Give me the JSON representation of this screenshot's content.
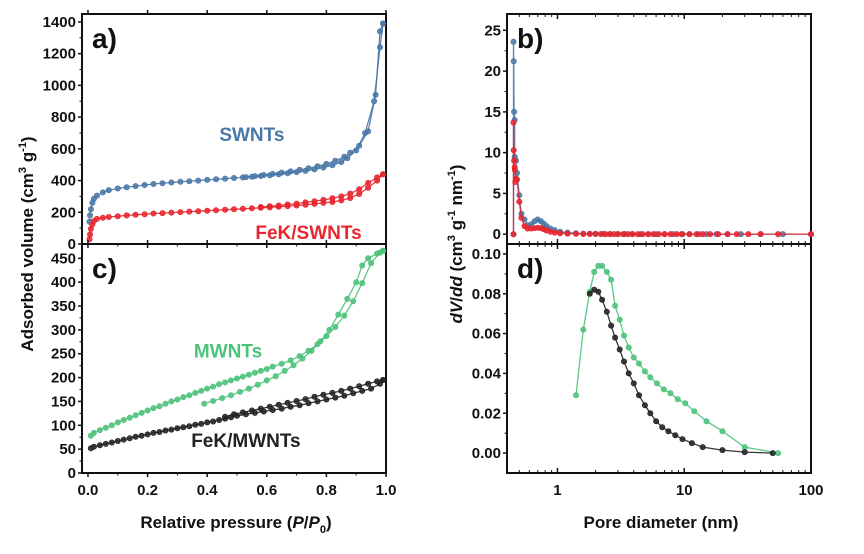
{
  "chart_data": [
    {
      "panel": "a",
      "type": "line",
      "tag": "a)",
      "xlabel": "Relative pressure (P/P0)",
      "ylabel": "Adsorbed volume (cm3 g-1)",
      "xlim": [
        -0.02,
        1.0
      ],
      "ylim": [
        0,
        1450
      ],
      "yticks": [
        0,
        200,
        400,
        600,
        800,
        1000,
        1200,
        1400
      ],
      "xticks": [
        0.0,
        0.2,
        0.4,
        0.6,
        0.8,
        1.0
      ],
      "show_xtick_labels": false,
      "series": [
        {
          "name": "SWNTs",
          "color": "#4a78a8",
          "label_pos": [
            0.55,
            650
          ],
          "x": [
            0.005,
            0.007,
            0.01,
            0.015,
            0.02,
            0.03,
            0.05,
            0.07,
            0.1,
            0.13,
            0.16,
            0.19,
            0.22,
            0.25,
            0.28,
            0.31,
            0.34,
            0.37,
            0.4,
            0.43,
            0.46,
            0.49,
            0.52,
            0.55,
            0.58,
            0.61,
            0.64,
            0.67,
            0.7,
            0.73,
            0.76,
            0.79,
            0.82,
            0.85,
            0.87,
            0.9,
            0.93,
            0.96,
            0.98,
            0.99,
            0.99,
            0.98,
            0.965,
            0.94,
            0.91,
            0.88,
            0.86,
            0.83,
            0.8,
            0.77,
            0.74,
            0.71,
            0.68,
            0.65,
            0.62,
            0.59,
            0.56,
            0.53
          ],
          "y": [
            140,
            180,
            220,
            260,
            285,
            305,
            325,
            340,
            350,
            358,
            365,
            372,
            378,
            383,
            388,
            392,
            396,
            400,
            404,
            408,
            412,
            416,
            420,
            424,
            429,
            434,
            440,
            446,
            453,
            461,
            470,
            482,
            496,
            517,
            540,
            590,
            700,
            900,
            1240,
            1390,
            1390,
            1340,
            940,
            710,
            620,
            575,
            550,
            525,
            505,
            490,
            478,
            467,
            458,
            450,
            442,
            435,
            428,
            422
          ],
          "hysteresis_split": 40
        },
        {
          "name": "FeK/SWNTs",
          "color": "#e8262f",
          "label_pos": [
            0.74,
            30
          ],
          "x": [
            0.005,
            0.007,
            0.01,
            0.015,
            0.02,
            0.03,
            0.05,
            0.07,
            0.1,
            0.13,
            0.16,
            0.19,
            0.22,
            0.25,
            0.28,
            0.31,
            0.34,
            0.37,
            0.4,
            0.43,
            0.46,
            0.49,
            0.52,
            0.55,
            0.58,
            0.61,
            0.64,
            0.67,
            0.7,
            0.73,
            0.76,
            0.79,
            0.82,
            0.85,
            0.88,
            0.91,
            0.94,
            0.97,
            0.99,
            0.99,
            0.97,
            0.94,
            0.91,
            0.88,
            0.85,
            0.82,
            0.79,
            0.76,
            0.73,
            0.7,
            0.67,
            0.64,
            0.61,
            0.58
          ],
          "y": [
            30,
            60,
            95,
            125,
            145,
            158,
            165,
            170,
            175,
            180,
            184,
            188,
            192,
            195,
            198,
            201,
            204,
            207,
            210,
            213,
            216,
            219,
            222,
            225,
            228,
            231,
            235,
            239,
            243,
            248,
            253,
            259,
            265,
            275,
            290,
            315,
            355,
            400,
            440,
            440,
            420,
            385,
            345,
            318,
            300,
            288,
            278,
            270,
            262,
            255,
            249,
            243,
            238,
            233
          ],
          "hysteresis_split": 39
        }
      ]
    },
    {
      "panel": "b",
      "type": "line",
      "tag": "b)",
      "xscale": "log",
      "xlim": [
        0.4,
        100
      ],
      "ylim": [
        -1.2,
        27
      ],
      "yticks": [
        0,
        5,
        10,
        15,
        20,
        25
      ],
      "show_xtick_labels": false,
      "series": [
        {
          "name": "SWNTs",
          "color": "#4a78a8",
          "x": [
            0.45,
            0.45,
            0.452,
            0.455,
            0.46,
            0.46,
            0.465,
            0.47,
            0.48,
            0.5,
            0.52,
            0.55,
            0.58,
            0.62,
            0.66,
            0.7,
            0.74,
            0.78,
            0.82,
            0.88,
            0.95,
            1.05,
            1.2,
            1.4,
            1.6,
            1.8,
            2.0,
            2.3,
            2.6,
            3.0,
            3.4,
            3.9,
            4.5,
            5.2,
            6.0,
            7.0,
            8.2,
            9.5,
            11,
            13,
            15,
            18,
            22,
            28,
            40,
            60,
            100
          ],
          "y": [
            0,
            23.6,
            21.2,
            15,
            14,
            9.5,
            9.2,
            9.0,
            7.5,
            4.8,
            2.5,
            1.8,
            1.1,
            1.2,
            1.6,
            1.8,
            1.6,
            1.3,
            1.0,
            0.7,
            0.5,
            0.3,
            0.2,
            0.12,
            0.08,
            0.06,
            0.05,
            0.04,
            0.03,
            0.02,
            0.02,
            0.02,
            0.01,
            0.01,
            0.01,
            0.01,
            0.01,
            0.01,
            0.01,
            0.01,
            0.01,
            0.01,
            0.01,
            0.01,
            0.01,
            0.01,
            0.01
          ]
        },
        {
          "name": "FeK/SWNTs",
          "color": "#e8262f",
          "x": [
            0.45,
            0.45,
            0.452,
            0.455,
            0.46,
            0.462,
            0.465,
            0.47,
            0.48,
            0.5,
            0.52,
            0.55,
            0.58,
            0.62,
            0.66,
            0.7,
            0.74,
            0.78,
            0.82,
            0.88,
            0.95,
            1.05,
            1.2,
            1.4,
            1.6,
            1.8,
            2.0,
            2.2,
            2.4,
            2.6,
            2.8,
            3.0,
            3.3,
            3.6,
            3.9,
            4.3,
            4.7,
            5.2,
            5.7,
            6.3,
            7.0,
            7.8,
            8.7,
            9.7,
            11,
            12.5,
            14,
            16,
            18.5,
            22,
            26,
            32,
            40,
            55,
            100
          ],
          "y": [
            0,
            13.7,
            10.3,
            9.0,
            8.2,
            7.9,
            6.4,
            6.8,
            6.7,
            4.0,
            2.0,
            1.0,
            0.7,
            0.7,
            0.75,
            0.8,
            0.75,
            0.6,
            0.45,
            0.3,
            0.2,
            0.12,
            0.08,
            0.05,
            0.03,
            0.02,
            0.02,
            0.02,
            0.01,
            0.01,
            0.01,
            0.01,
            0.01,
            0.01,
            0.01,
            0.01,
            0.01,
            0.01,
            0.01,
            0.01,
            0.01,
            0.01,
            0.01,
            0.01,
            0.01,
            0.01,
            0.01,
            0.01,
            0.01,
            0.01,
            0.01,
            0.01,
            0.01,
            0.01,
            0.01
          ]
        }
      ]
    },
    {
      "panel": "c",
      "type": "line",
      "tag": "c)",
      "xlabel": "Relative pressure (P/P0)",
      "xlim": [
        -0.02,
        1.0
      ],
      "ylim": [
        0,
        480
      ],
      "yticks": [
        0,
        50,
        100,
        150,
        200,
        250,
        300,
        350,
        400,
        450
      ],
      "xticks": [
        0.0,
        0.2,
        0.4,
        0.6,
        0.8,
        1.0
      ],
      "xtick_labels": [
        "0.0",
        "0.2",
        "0.4",
        "0.6",
        "0.8",
        "1.0"
      ],
      "series": [
        {
          "name": "MWNTs",
          "color": "#4cc27a",
          "label_pos": [
            0.47,
            242
          ],
          "x": [
            0.01,
            0.02,
            0.04,
            0.06,
            0.08,
            0.1,
            0.12,
            0.14,
            0.16,
            0.18,
            0.2,
            0.22,
            0.24,
            0.26,
            0.28,
            0.3,
            0.32,
            0.34,
            0.36,
            0.38,
            0.4,
            0.42,
            0.44,
            0.46,
            0.48,
            0.5,
            0.52,
            0.54,
            0.56,
            0.58,
            0.6,
            0.62,
            0.65,
            0.68,
            0.71,
            0.74,
            0.77,
            0.8,
            0.83,
            0.86,
            0.89,
            0.92,
            0.95,
            0.98,
            0.99,
            0.99,
            0.97,
            0.94,
            0.92,
            0.9,
            0.87,
            0.84,
            0.81,
            0.78,
            0.75,
            0.72,
            0.69,
            0.66,
            0.63,
            0.6,
            0.57,
            0.54,
            0.51,
            0.48,
            0.45,
            0.42,
            0.39
          ],
          "y": [
            78,
            84,
            90,
            95,
            100,
            106,
            111,
            116,
            121,
            126,
            131,
            136,
            140,
            145,
            150,
            154,
            159,
            163,
            168,
            172,
            177,
            181,
            186,
            190,
            194,
            198,
            202,
            206,
            210,
            214,
            218,
            223,
            229,
            236,
            245,
            256,
            270,
            287,
            306,
            330,
            360,
            398,
            440,
            462,
            466,
            466,
            460,
            450,
            435,
            400,
            365,
            332,
            300,
            276,
            256,
            240,
            226,
            214,
            203,
            194,
            185,
            177,
            170,
            163,
            157,
            151,
            145
          ],
          "hysteresis_split": 45
        },
        {
          "name": "FeK/MWNTs",
          "color": "#222222",
          "label_pos": [
            0.53,
            55
          ],
          "x": [
            0.01,
            0.02,
            0.04,
            0.06,
            0.08,
            0.1,
            0.12,
            0.14,
            0.16,
            0.18,
            0.2,
            0.22,
            0.24,
            0.26,
            0.28,
            0.3,
            0.32,
            0.34,
            0.36,
            0.38,
            0.4,
            0.42,
            0.44,
            0.46,
            0.48,
            0.5,
            0.53,
            0.56,
            0.59,
            0.62,
            0.65,
            0.68,
            0.71,
            0.74,
            0.77,
            0.8,
            0.83,
            0.86,
            0.89,
            0.92,
            0.95,
            0.98,
            0.99,
            0.99,
            0.97,
            0.94,
            0.91,
            0.88,
            0.85,
            0.82,
            0.79,
            0.76,
            0.73,
            0.7,
            0.67,
            0.64,
            0.61,
            0.58,
            0.55,
            0.52,
            0.49,
            0.46
          ],
          "y": [
            52,
            55,
            58,
            61,
            64,
            67,
            70,
            73,
            76,
            78,
            81,
            84,
            86,
            89,
            91,
            94,
            96,
            98,
            101,
            103,
            106,
            108,
            111,
            114,
            117,
            120,
            123,
            126,
            129,
            132,
            135,
            139,
            142,
            146,
            150,
            154,
            158,
            162,
            167,
            172,
            177,
            187,
            195,
            195,
            192,
            187,
            182,
            177,
            172,
            168,
            164,
            160,
            155,
            151,
            147,
            143,
            139,
            135,
            131,
            127,
            123,
            118
          ],
          "hysteresis_split": 43
        }
      ]
    },
    {
      "panel": "d",
      "type": "line",
      "tag": "d)",
      "xscale": "log",
      "xlabel": "Pore diameter (nm)",
      "ylabel": "dV/dd (cm3 g-1 nm-1)",
      "xlim": [
        0.4,
        100
      ],
      "ylim": [
        -0.01,
        0.105
      ],
      "yticks": [
        0.0,
        0.02,
        0.04,
        0.06,
        0.08,
        0.1
      ],
      "ytick_labels": [
        "0.00",
        "0.02",
        "0.04",
        "0.06",
        "0.08",
        "0.10"
      ],
      "xticks": [
        1,
        10,
        100
      ],
      "xtick_labels": [
        "1",
        "10",
        "100"
      ],
      "series": [
        {
          "name": "MWNTs",
          "color": "#4cc27a",
          "x": [
            1.4,
            1.6,
            1.8,
            1.95,
            2.1,
            2.25,
            2.45,
            2.65,
            2.85,
            3.1,
            3.35,
            3.65,
            4.0,
            4.4,
            4.9,
            5.4,
            6.1,
            6.9,
            7.8,
            8.9,
            10.2,
            12,
            15,
            20,
            30,
            55
          ],
          "y": [
            0.029,
            0.062,
            0.081,
            0.091,
            0.094,
            0.094,
            0.091,
            0.087,
            0.074,
            0.067,
            0.059,
            0.053,
            0.048,
            0.045,
            0.041,
            0.038,
            0.035,
            0.032,
            0.03,
            0.027,
            0.025,
            0.021,
            0.016,
            0.011,
            0.003,
            0.0
          ]
        },
        {
          "name": "FeK/MWNTs",
          "color": "#222222",
          "x": [
            1.8,
            1.95,
            2.1,
            2.25,
            2.45,
            2.65,
            2.85,
            3.1,
            3.35,
            3.65,
            4.0,
            4.4,
            4.9,
            5.4,
            6.0,
            6.7,
            7.5,
            8.5,
            9.7,
            11.5,
            14,
            20,
            30,
            50
          ],
          "y": [
            0.08,
            0.082,
            0.081,
            0.077,
            0.071,
            0.064,
            0.058,
            0.052,
            0.046,
            0.04,
            0.035,
            0.029,
            0.024,
            0.02,
            0.016,
            0.013,
            0.011,
            0.009,
            0.007,
            0.005,
            0.003,
            0.0015,
            0.0005,
            0.0
          ]
        }
      ]
    }
  ]
}
